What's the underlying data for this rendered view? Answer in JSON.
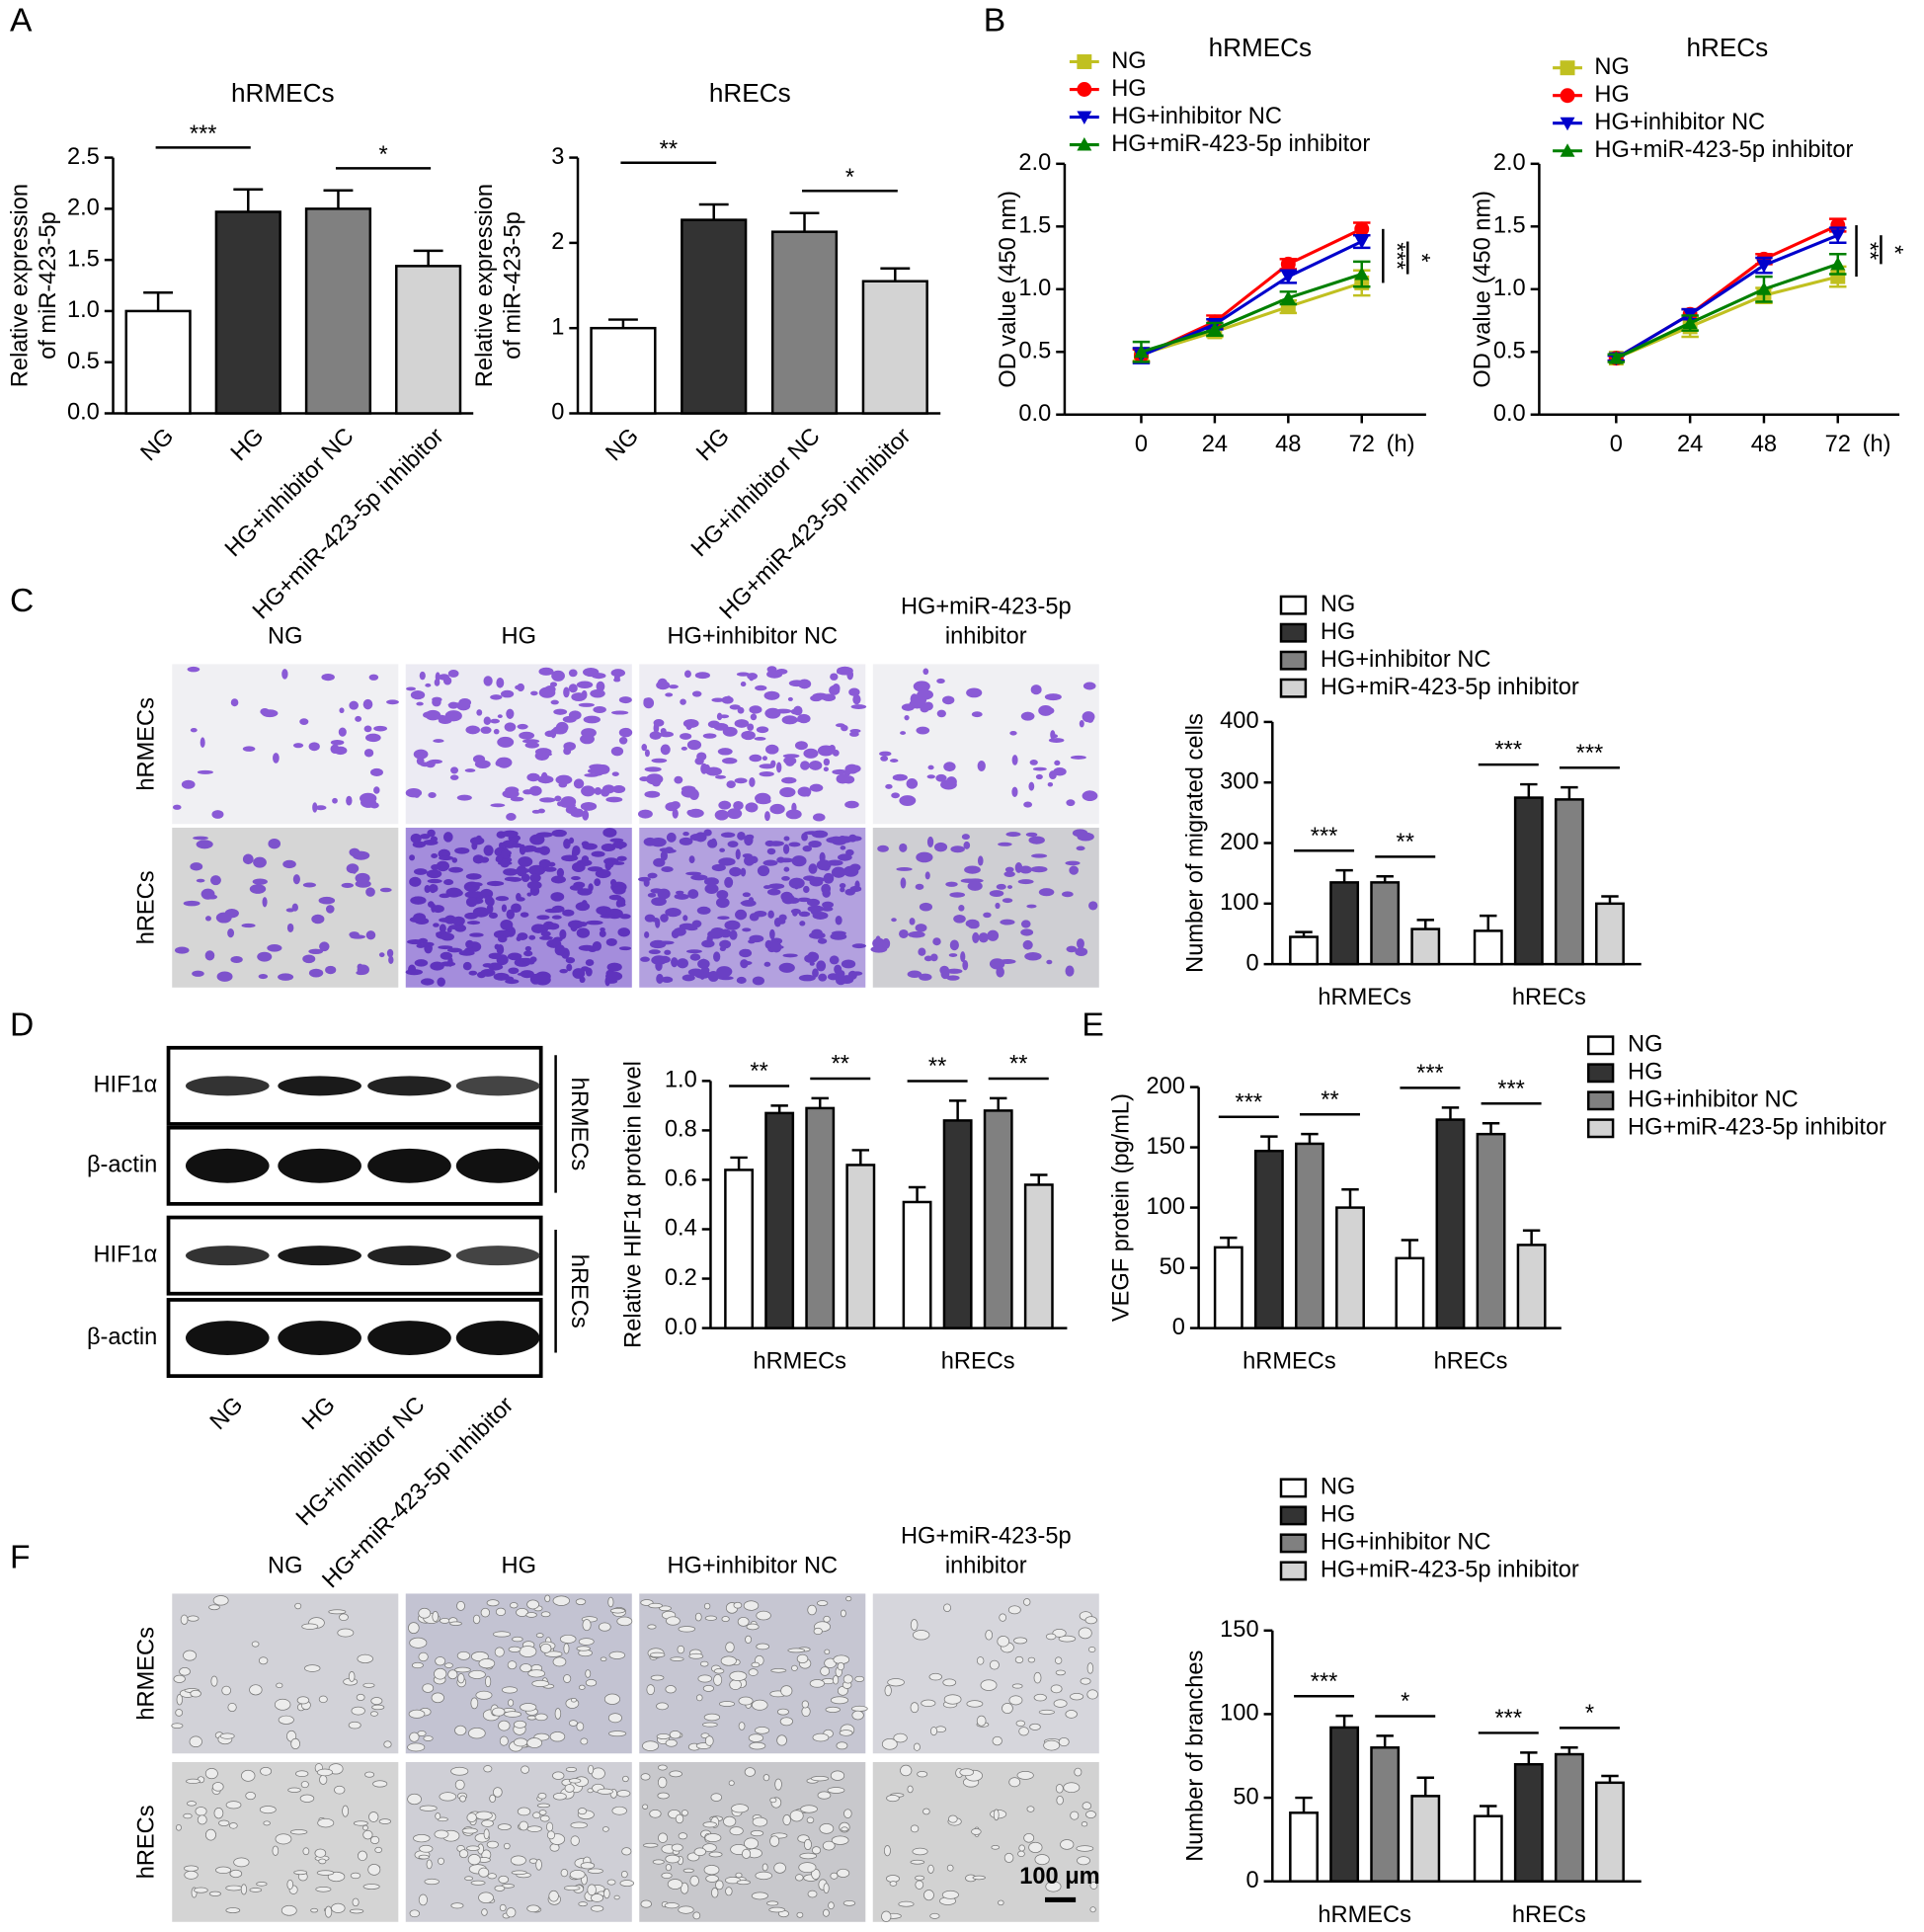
{
  "panel_labels": [
    "A",
    "B",
    "C",
    "D",
    "E",
    "F"
  ],
  "migration_images": {
    "columns": [
      "NG",
      "HG",
      "HG+inhibitor NC",
      [
        "HG+miR-423-5p",
        "inhibitor"
      ]
    ],
    "rows": [
      "hRMECs",
      "hRECs"
    ]
  },
  "blot": {
    "bands": [
      "HIF1α",
      "β-actin",
      "HIF1α",
      "β-actin"
    ],
    "groups": [
      "hRMECs",
      "hRECs"
    ],
    "lanes": [
      "NG",
      "HG",
      "HG+inhibitor NC",
      "HG+miR-423-5p inhibitor"
    ]
  },
  "tube_images": {
    "columns": [
      "NG",
      "HG",
      "HG+inhibitor NC",
      [
        "HG+miR-423-5p",
        "inhibitor"
      ]
    ],
    "rows": [
      "hRMECs",
      "hRECs"
    ],
    "scale_bar": "100 μm"
  },
  "chart_data": [
    {
      "type": "bar",
      "title": "hRMECs",
      "ylabel": [
        "Relative expression",
        "of miR-423-5p"
      ],
      "categories": [
        "NG",
        "HG",
        "HG+inhibitor NC",
        "HG+miR-423-5p inhibitor"
      ],
      "values": [
        1.0,
        1.97,
        2.0,
        1.44
      ],
      "errors": [
        0.18,
        0.22,
        0.18,
        0.15
      ],
      "colors": [
        "#ffffff",
        "#333333",
        "#808080",
        "#d3d3d3"
      ],
      "ylim": [
        0,
        2.5
      ],
      "yticks": [
        {
          "value": 0,
          "label": "0.0"
        },
        0.5,
        {
          "value": 1,
          "label": "1.0"
        },
        1.5,
        {
          "value": 2,
          "label": "2.0"
        },
        2.5
      ],
      "significance": [
        {
          "bars": [
            0,
            1
          ],
          "label": "***"
        },
        {
          "bars": [
            2,
            3
          ],
          "label": "*"
        }
      ]
    },
    {
      "type": "bar",
      "title": "hRECs",
      "ylabel": [
        "Relative expression",
        "of miR-423-5p"
      ],
      "categories": [
        "NG",
        "HG",
        "HG+inhibitor NC",
        "HG+miR-423-5p inhibitor"
      ],
      "values": [
        1.0,
        2.27,
        2.13,
        1.55
      ],
      "errors": [
        0.1,
        0.18,
        0.22,
        0.15
      ],
      "colors": [
        "#ffffff",
        "#333333",
        "#808080",
        "#d3d3d3"
      ],
      "ylim": [
        0,
        3
      ],
      "yticks": [
        0,
        1,
        2,
        3
      ],
      "significance": [
        {
          "bars": [
            0,
            1
          ],
          "label": "**"
        },
        {
          "bars": [
            2,
            3
          ],
          "label": "*"
        }
      ]
    },
    {
      "type": "line",
      "title": "hRMECs",
      "ylabel": "OD value (450 nm)",
      "xlabel": "(h)",
      "x": [
        0,
        24,
        48,
        72
      ],
      "xlim": [
        -25,
        93
      ],
      "xticks": [
        0,
        24,
        48,
        72
      ],
      "ylim": [
        0,
        2
      ],
      "yticks": [
        {
          "value": 0,
          "label": "0.0"
        },
        0.5,
        {
          "value": 1,
          "label": "1.0"
        },
        1.5,
        {
          "value": 2,
          "label": "2.0"
        }
      ],
      "series": [
        {
          "name": "NG",
          "color": "#c0c020",
          "marker": "square",
          "values": [
            0.48,
            0.66,
            0.86,
            1.05
          ],
          "errors": [
            0.05,
            0.04,
            0.05,
            0.1
          ]
        },
        {
          "name": "HG",
          "color": "#ff0000",
          "marker": "circle",
          "values": [
            0.47,
            0.74,
            1.2,
            1.48
          ],
          "errors": [
            0.05,
            0.05,
            0.04,
            0.05
          ]
        },
        {
          "name": "HG+inhibitor NC",
          "color": "#0000cc",
          "marker": "triangle-down",
          "values": [
            0.47,
            0.72,
            1.1,
            1.38
          ],
          "errors": [
            0.06,
            0.04,
            0.05,
            0.05
          ]
        },
        {
          "name": "HG+miR-423-5p inhibitor",
          "color": "#008000",
          "marker": "triangle-up",
          "values": [
            0.5,
            0.68,
            0.93,
            1.12
          ],
          "errors": [
            0.08,
            0.05,
            0.05,
            0.1
          ]
        }
      ],
      "significance": [
        {
          "series": [
            1,
            0
          ],
          "label": "***"
        },
        {
          "series": [
            2,
            3
          ],
          "label": "*"
        }
      ]
    },
    {
      "type": "line",
      "title": "hRECs",
      "ylabel": "OD value (450 nm)",
      "xlabel": "(h)",
      "x": [
        0,
        24,
        48,
        72
      ],
      "xlim": [
        -25,
        92
      ],
      "xticks": [
        0,
        24,
        48,
        72
      ],
      "ylim": [
        0,
        2
      ],
      "yticks": [
        {
          "value": 0,
          "label": "0.0"
        },
        0.5,
        {
          "value": 1,
          "label": "1.0"
        },
        1.5,
        {
          "value": 2,
          "label": "2.0"
        }
      ],
      "series": [
        {
          "name": "NG",
          "color": "#c0c020",
          "marker": "square",
          "values": [
            0.45,
            0.7,
            0.95,
            1.1
          ],
          "errors": [
            0.03,
            0.08,
            0.06,
            0.08
          ]
        },
        {
          "name": "HG",
          "color": "#ff0000",
          "marker": "circle",
          "values": [
            0.45,
            0.8,
            1.24,
            1.51
          ],
          "errors": [
            0.02,
            0.04,
            0.04,
            0.05
          ]
        },
        {
          "name": "HG+inhibitor NC",
          "color": "#0000cc",
          "marker": "triangle-down",
          "values": [
            0.45,
            0.8,
            1.19,
            1.43
          ],
          "errors": [
            0.02,
            0.04,
            0.06,
            0.06
          ]
        },
        {
          "name": "HG+miR-423-5p inhibitor",
          "color": "#008000",
          "marker": "triangle-up",
          "values": [
            0.45,
            0.73,
            1.0,
            1.2
          ],
          "errors": [
            0.03,
            0.06,
            0.1,
            0.08
          ]
        }
      ],
      "significance": [
        {
          "series": [
            1,
            0
          ],
          "label": "**"
        },
        {
          "series": [
            2,
            3
          ],
          "label": "*"
        }
      ]
    },
    {
      "type": "grouped_bar",
      "ylabel": "Number of migrated cells",
      "legend": true,
      "categories": [
        "hRMECs",
        "hRECs"
      ],
      "ylim": [
        0,
        400
      ],
      "yticks": [
        0,
        100,
        200,
        300,
        400
      ],
      "series": [
        {
          "name": "NG",
          "color": "#ffffff",
          "values": [
            45,
            55
          ],
          "errors": [
            8,
            25
          ]
        },
        {
          "name": "HG",
          "color": "#333333",
          "values": [
            135,
            275
          ],
          "errors": [
            20,
            22
          ]
        },
        {
          "name": "HG+inhibitor NC",
          "color": "#808080",
          "values": [
            135,
            272
          ],
          "errors": [
            10,
            20
          ]
        },
        {
          "name": "HG+miR-423-5p inhibitor",
          "color": "#d3d3d3",
          "values": [
            58,
            100
          ],
          "errors": [
            15,
            12
          ]
        }
      ],
      "significance": [
        {
          "category": 0,
          "series": [
            0,
            1
          ],
          "label": "***"
        },
        {
          "category": 0,
          "series": [
            2,
            3
          ],
          "label": "**"
        },
        {
          "category": 1,
          "series": [
            0,
            1
          ],
          "label": "***"
        },
        {
          "category": 1,
          "series": [
            2,
            3
          ],
          "label": "***"
        }
      ]
    },
    {
      "type": "grouped_bar",
      "ylabel": "Relative HIF1α protein level",
      "legend": false,
      "categories": [
        "hRMECs",
        "hRECs"
      ],
      "ylim": [
        0,
        1
      ],
      "yticks": [
        {
          "value": 0,
          "label": "0.0"
        },
        0.2,
        0.4,
        0.6,
        0.8,
        {
          "value": 1,
          "label": "1.0"
        }
      ],
      "series": [
        {
          "name": "NG",
          "color": "#ffffff",
          "values": [
            0.64,
            0.51
          ],
          "errors": [
            0.05,
            0.06
          ]
        },
        {
          "name": "HG",
          "color": "#333333",
          "values": [
            0.87,
            0.84
          ],
          "errors": [
            0.03,
            0.08
          ]
        },
        {
          "name": "HG+inhibitor NC",
          "color": "#808080",
          "values": [
            0.89,
            0.88
          ],
          "errors": [
            0.04,
            0.05
          ]
        },
        {
          "name": "HG+miR-423-5p inhibitor",
          "color": "#d3d3d3",
          "values": [
            0.66,
            0.58
          ],
          "errors": [
            0.06,
            0.04
          ]
        }
      ],
      "significance": [
        {
          "category": 0,
          "series": [
            0,
            1
          ],
          "label": "**"
        },
        {
          "category": 0,
          "series": [
            2,
            3
          ],
          "label": "**"
        },
        {
          "category": 1,
          "series": [
            0,
            1
          ],
          "label": "**"
        },
        {
          "category": 1,
          "series": [
            2,
            3
          ],
          "label": "**"
        }
      ]
    },
    {
      "type": "grouped_bar",
      "ylabel": "VEGF protein (pg/mL)",
      "legend": true,
      "categories": [
        "hRMECs",
        "hRECs"
      ],
      "ylim": [
        0,
        200
      ],
      "yticks": [
        0,
        50,
        100,
        150,
        200
      ],
      "series": [
        {
          "name": "NG",
          "color": "#ffffff",
          "values": [
            67,
            58
          ],
          "errors": [
            8,
            15
          ]
        },
        {
          "name": "HG",
          "color": "#333333",
          "values": [
            147,
            173
          ],
          "errors": [
            12,
            10
          ]
        },
        {
          "name": "HG+inhibitor NC",
          "color": "#808080",
          "values": [
            153,
            161
          ],
          "errors": [
            8,
            9
          ]
        },
        {
          "name": "HG+miR-423-5p inhibitor",
          "color": "#d3d3d3",
          "values": [
            100,
            69
          ],
          "errors": [
            15,
            12
          ]
        }
      ],
      "significance": [
        {
          "category": 0,
          "series": [
            0,
            1
          ],
          "label": "***"
        },
        {
          "category": 0,
          "series": [
            2,
            3
          ],
          "label": "**"
        },
        {
          "category": 1,
          "series": [
            0,
            1
          ],
          "label": "***"
        },
        {
          "category": 1,
          "series": [
            2,
            3
          ],
          "label": "***"
        }
      ]
    },
    {
      "type": "grouped_bar",
      "ylabel": "Number of branches",
      "legend": true,
      "categories": [
        "hRMECs",
        "hRECs"
      ],
      "ylim": [
        0,
        150
      ],
      "yticks": [
        0,
        50,
        100,
        150
      ],
      "series": [
        {
          "name": "NG",
          "color": "#ffffff",
          "values": [
            41,
            39
          ],
          "errors": [
            9,
            6
          ]
        },
        {
          "name": "HG",
          "color": "#333333",
          "values": [
            92,
            70
          ],
          "errors": [
            7,
            7
          ]
        },
        {
          "name": "HG+inhibitor NC",
          "color": "#808080",
          "values": [
            80,
            76
          ],
          "errors": [
            7,
            4
          ]
        },
        {
          "name": "HG+miR-423-5p inhibitor",
          "color": "#d3d3d3",
          "values": [
            51,
            59
          ],
          "errors": [
            11,
            4
          ]
        }
      ],
      "significance": [
        {
          "category": 0,
          "series": [
            0,
            1
          ],
          "label": "***"
        },
        {
          "category": 0,
          "series": [
            2,
            3
          ],
          "label": "*"
        },
        {
          "category": 1,
          "series": [
            0,
            1
          ],
          "label": "***"
        },
        {
          "category": 1,
          "series": [
            2,
            3
          ],
          "label": "*"
        }
      ]
    }
  ]
}
